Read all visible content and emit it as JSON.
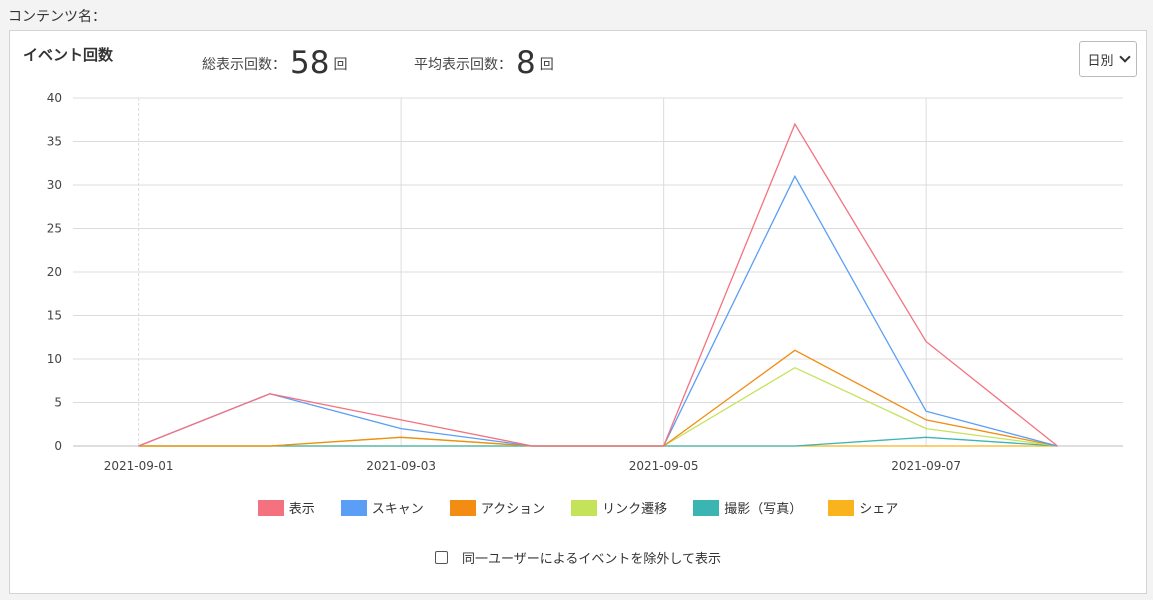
{
  "content_label": "コンテンツ名：",
  "panel_title": "イベント回数",
  "stats": {
    "total_label": "総表示回数：",
    "total_value": "58",
    "avg_label": "平均表示回数：",
    "avg_value": "8",
    "unit": "回"
  },
  "period_select": {
    "selected": "日別"
  },
  "exclude_checkbox": {
    "label": "同一ユーザーによるイベントを除外して表示",
    "checked": false
  },
  "chart_data": {
    "type": "line",
    "x": [
      "2021-09-01",
      "2021-09-02",
      "2021-09-03",
      "2021-09-04",
      "2021-09-05",
      "2021-09-06",
      "2021-09-07",
      "2021-09-08"
    ],
    "x_tick_labels": [
      "2021-09-01",
      "2021-09-03",
      "2021-09-05",
      "2021-09-07"
    ],
    "ylim": [
      0,
      40
    ],
    "y_ticks": [
      0,
      5,
      10,
      15,
      20,
      25,
      30,
      35,
      40
    ],
    "grid": true,
    "legend": "bottom-center",
    "series": [
      {
        "name": "表示",
        "color": "#f4727f",
        "values": [
          0,
          6,
          3,
          0,
          0,
          37,
          12,
          0
        ]
      },
      {
        "name": "スキャン",
        "color": "#5b9ef5",
        "values": [
          0,
          6,
          2,
          0,
          0,
          31,
          4,
          0
        ]
      },
      {
        "name": "アクション",
        "color": "#f28c12",
        "values": [
          0,
          0,
          1,
          0,
          0,
          11,
          3,
          0
        ]
      },
      {
        "name": "リンク遷移",
        "color": "#c4e35a",
        "values": [
          0,
          0,
          1,
          0,
          0,
          9,
          2,
          0
        ]
      },
      {
        "name": "撮影（写真）",
        "color": "#3bb5b2",
        "values": [
          0,
          0,
          0,
          0,
          0,
          0,
          1,
          0
        ]
      },
      {
        "name": "シェア",
        "color": "#f9b31c",
        "values": [
          0,
          0,
          0,
          0,
          0,
          0,
          0,
          0
        ]
      }
    ]
  }
}
